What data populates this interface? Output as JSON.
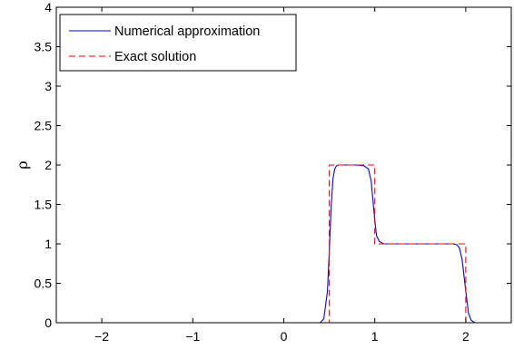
{
  "chart_data": {
    "type": "line",
    "title": "",
    "xlabel": "",
    "ylabel": "ρ",
    "xlim": [
      -2.5,
      2.5
    ],
    "ylim": [
      0,
      4
    ],
    "xticks": [
      -2,
      -1,
      0,
      1,
      2
    ],
    "xtick_labels": [
      "−2",
      "−1",
      "0",
      "1",
      "2"
    ],
    "yticks": [
      0,
      0.5,
      1,
      1.5,
      2,
      2.5,
      3,
      3.5,
      4
    ],
    "ytick_labels": [
      "0",
      "0.5",
      "1",
      "1.5",
      "2",
      "2.5",
      "3",
      "3.5",
      "4"
    ],
    "grid": false,
    "legend_position": "top-left",
    "series": [
      {
        "name": "Numerical approximation",
        "color": "#0000ff",
        "style": "solid",
        "x": [
          -2.5,
          0.4,
          0.44,
          0.48,
          0.5,
          0.52,
          0.54,
          0.56,
          0.58,
          0.6,
          0.63,
          0.7,
          0.8,
          0.88,
          0.93,
          0.96,
          0.98,
          1.0,
          1.02,
          1.05,
          1.1,
          1.2,
          1.5,
          1.85,
          1.9,
          1.93,
          1.96,
          2.0,
          2.03,
          2.06,
          2.1,
          2.2,
          2.5
        ],
        "y": [
          0,
          0,
          0.05,
          0.4,
          0.9,
          1.45,
          1.82,
          1.95,
          1.99,
          2.0,
          2.0,
          2.0,
          2.0,
          1.99,
          1.95,
          1.8,
          1.55,
          1.3,
          1.1,
          1.03,
          1.0,
          1.0,
          1.0,
          1.0,
          0.99,
          0.95,
          0.8,
          0.4,
          0.12,
          0.03,
          0.0,
          0.0,
          0
        ]
      },
      {
        "name": "Exact solution",
        "color": "#ff0000",
        "style": "dashed",
        "x": [
          -2.5,
          0.5,
          0.5,
          1.0,
          1.0,
          2.0,
          2.0,
          2.5
        ],
        "y": [
          0,
          0,
          2,
          2,
          1,
          1,
          0,
          0
        ]
      }
    ]
  }
}
